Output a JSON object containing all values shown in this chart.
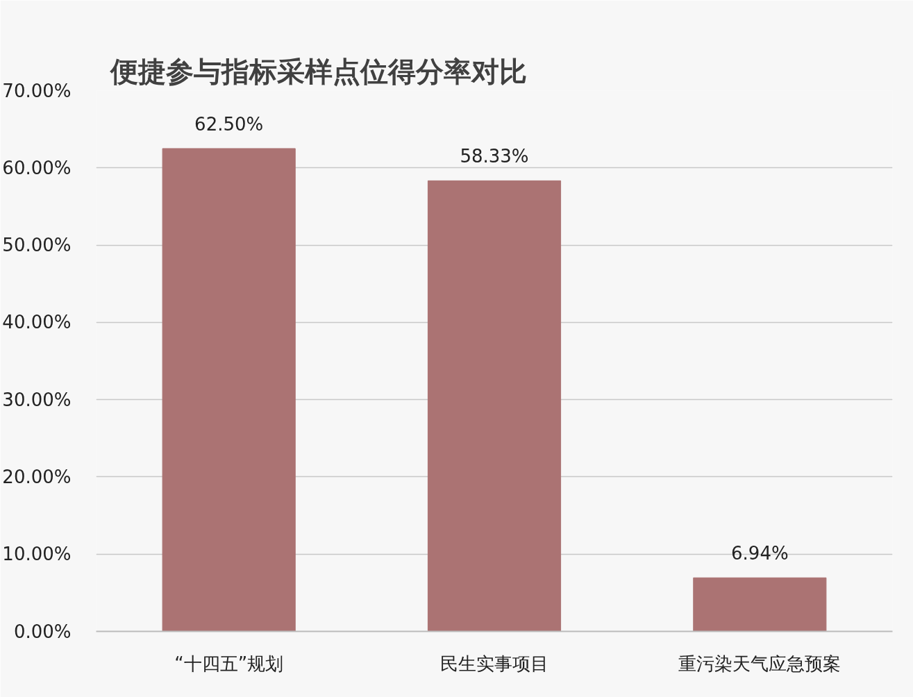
{
  "chart_data": {
    "type": "bar",
    "title": "便捷参与指标采样点位得分率对比",
    "categories": [
      "“十四五”规划",
      "民生实事项目",
      "重污染天气应急预案"
    ],
    "values": [
      62.5,
      58.33,
      6.94
    ],
    "value_labels": [
      "62.50%",
      "58.33%",
      "6.94%"
    ],
    "color": "#ab7373",
    "ylim": [
      0,
      70
    ],
    "yticks": [
      {
        "value": 0,
        "label": "0.00%"
      },
      {
        "value": 10,
        "label": "10.00%"
      },
      {
        "value": 20,
        "label": "20.00%"
      },
      {
        "value": 30,
        "label": "30.00%"
      },
      {
        "value": 40,
        "label": "40.00%"
      },
      {
        "value": 50,
        "label": "50.00%"
      },
      {
        "value": 60,
        "label": "60.00%"
      },
      {
        "value": 70,
        "label": "70.00%"
      }
    ],
    "grid": "y"
  }
}
